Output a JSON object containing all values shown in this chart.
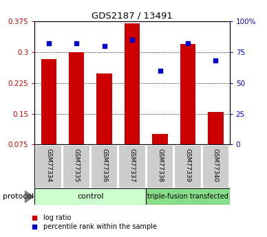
{
  "title": "GDS2187 / 13491",
  "samples": [
    "GSM77334",
    "GSM77335",
    "GSM77336",
    "GSM77337",
    "GSM77338",
    "GSM77339",
    "GSM77340"
  ],
  "log_ratio": [
    0.283,
    0.3,
    0.248,
    0.37,
    0.1,
    0.32,
    0.155
  ],
  "percentile_rank": [
    82,
    82,
    80,
    85,
    60,
    82,
    68
  ],
  "ylim_left": [
    0.075,
    0.375
  ],
  "ylim_right": [
    0,
    100
  ],
  "yticks_left": [
    0.075,
    0.15,
    0.225,
    0.3,
    0.375
  ],
  "yticks_right": [
    0,
    25,
    50,
    75,
    100
  ],
  "ytick_labels_left": [
    "0.075",
    "0.15",
    "0.225",
    "0.3",
    "0.375"
  ],
  "ytick_labels_right": [
    "0",
    "25",
    "50",
    "75",
    "100%"
  ],
  "bar_color": "#cc0000",
  "scatter_color": "#0000cc",
  "control_samples": 4,
  "control_label": "control",
  "treatment_label": "triple-fusion transfected",
  "protocol_label": "protocol",
  "legend_logratio": "log ratio",
  "legend_percentile": "percentile rank within the sample",
  "control_bg": "#ccffcc",
  "treatment_bg": "#88dd88",
  "sample_box_bg": "#cccccc",
  "figsize": [
    3.88,
    3.45
  ],
  "dpi": 100
}
